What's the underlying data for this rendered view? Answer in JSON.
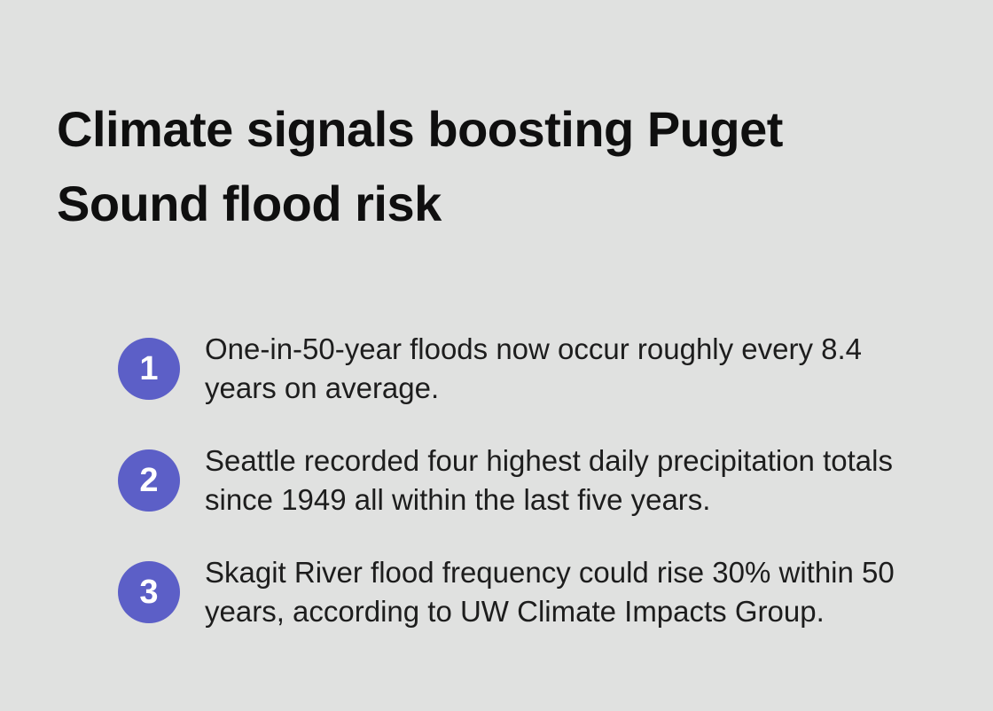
{
  "slide": {
    "title": "Climate signals boosting Puget Sound flood risk",
    "items": [
      {
        "number": "1",
        "text": "One-in-50-year floods now occur roughly every 8.4 years on average."
      },
      {
        "number": "2",
        "text": "Seattle recorded four highest daily precipitation totals since 1949 all within the last five years."
      },
      {
        "number": "3",
        "text": "Skagit River flood frequency could rise 30% within 50 years, according to UW Climate Impacts Group."
      }
    ],
    "colors": {
      "background": "#e0e1e0",
      "badge": "#5c5fc7",
      "badge_text": "#ffffff",
      "heading_text": "#0f0f0f",
      "body_text": "#1d1d1d"
    }
  }
}
